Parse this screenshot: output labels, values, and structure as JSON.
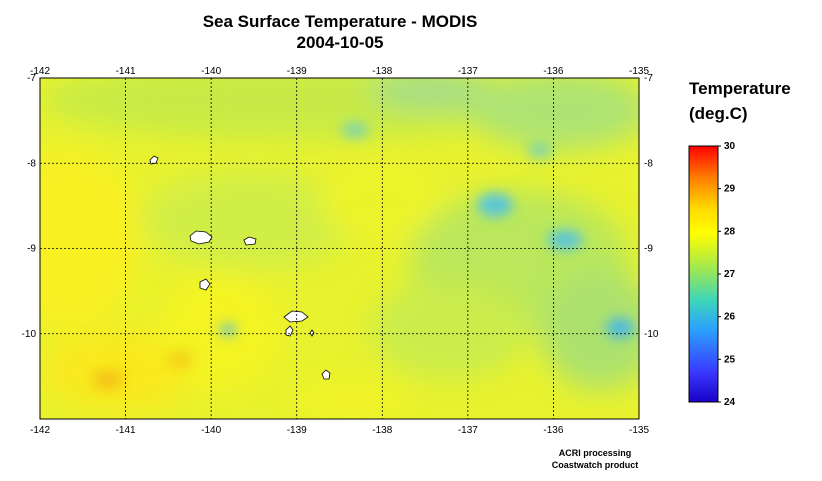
{
  "title": {
    "line1": "Sea Surface Temperature - MODIS",
    "line2": "2004-10-05"
  },
  "map": {
    "lon_range": [
      -142,
      -135
    ],
    "lat_range": [
      -11,
      -7
    ],
    "lon_ticks": [
      "-142",
      "-141",
      "-140",
      "-139",
      "-138",
      "-137",
      "-136",
      "-135"
    ],
    "lat_ticks": [
      "-7",
      "-8",
      "-9",
      "-10"
    ],
    "grid": "dotted",
    "islands": [
      "Marquesas islands (land, white)"
    ]
  },
  "colorbar": {
    "title": "Temperature",
    "units": "(deg.C)",
    "range": [
      24,
      30
    ],
    "ticks": [
      "30",
      "29",
      "28",
      "27",
      "26",
      "25",
      "24"
    ],
    "colors": [
      "#ff0000",
      "#ff7a00",
      "#ffd800",
      "#ffff00",
      "#9fe850",
      "#3fd6b8",
      "#2aa0ff",
      "#3a3aff",
      "#1a00c8"
    ]
  },
  "credit": {
    "line1": "ACRI processing",
    "line2": "Coastwatch product"
  }
}
